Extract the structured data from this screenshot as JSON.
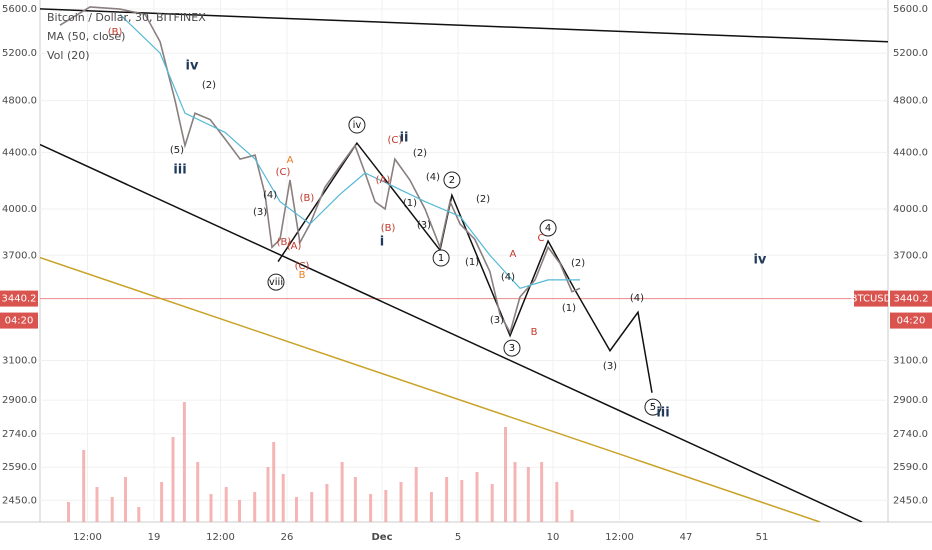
{
  "chart_data": {
    "type": "line",
    "title": "Bitcoin / Dollar, 30, BITFINEX",
    "indicators": [
      "MA (50, close)",
      "Vol (20)"
    ],
    "log_scale": true,
    "grid": true,
    "xlim": [
      13,
      57.63
    ],
    "xticks": [
      {
        "value": 15.5,
        "label": "12:00"
      },
      19,
      {
        "value": 22.5,
        "label": "12:00"
      },
      26,
      {
        "value": 31,
        "label": "Dec"
      },
      {
        "value": 35,
        "label": "5"
      },
      {
        "value": 40,
        "label": "10"
      },
      {
        "value": 43.5,
        "label": "12:00"
      },
      47,
      51
    ],
    "ylim": [
      2362,
      5686
    ],
    "yticks": [
      {
        "value": 5600,
        "label": "5600.0"
      },
      {
        "value": 5200,
        "label": "5200.0"
      },
      {
        "value": 4800,
        "label": "4800.0"
      },
      {
        "value": 4400,
        "label": "4400.0"
      },
      {
        "value": 4000,
        "label": "4000.0"
      },
      {
        "value": 3700,
        "label": "3700.0"
      },
      {
        "value": 3100,
        "label": "3100.0"
      },
      {
        "value": 2900,
        "label": "2900.0"
      },
      {
        "value": 2740,
        "label": "2740.0"
      },
      {
        "value": 2590,
        "label": "2590.0"
      },
      {
        "value": 2450,
        "label": "2450.0"
      }
    ],
    "series": [
      {
        "name": "BTCUSD",
        "color": "#8a7f7f",
        "x": [
          14.05,
          15.63,
          17.21,
          18.53,
          19.32,
          20.11,
          20.63,
          21.16,
          21.95,
          22.74,
          23.53,
          24.32,
          24.84,
          25.21,
          25.63,
          26.16,
          26.68,
          27.21,
          28.0,
          28.79,
          29.58,
          30.11,
          30.63,
          31.16,
          31.68,
          32.47,
          33.26,
          34.05,
          34.58,
          35.11,
          35.89,
          36.68,
          37.21,
          37.74,
          38.26,
          39.05,
          39.74,
          40.37,
          41.0,
          41.42
        ],
        "values": [
          5450,
          5620,
          5600,
          5550,
          5300,
          4800,
          4450,
          4700,
          4650,
          4500,
          4350,
          4380,
          4100,
          3750,
          3800,
          4200,
          3780,
          3900,
          4150,
          4300,
          4450,
          4250,
          4050,
          4000,
          4350,
          4200,
          4000,
          3750,
          4050,
          3900,
          3800,
          3600,
          3350,
          3250,
          3450,
          3550,
          3750,
          3650,
          3480,
          3500
        ]
      },
      {
        "name": "MA (50, close)",
        "color": "#55b8d6",
        "x": [
          17.21,
          19.32,
          20.63,
          22.74,
          24.32,
          25.63,
          27.21,
          28.79,
          30.11,
          31.68,
          33.26,
          35.11,
          36.68,
          38.26,
          39.74,
          41.42
        ],
        "values": [
          5550,
          5200,
          4700,
          4550,
          4350,
          4050,
          3900,
          4100,
          4250,
          4150,
          4050,
          3950,
          3700,
          3500,
          3550,
          3550
        ]
      }
    ],
    "volume": {
      "color": "#f2a3a3",
      "x": [
        14.5,
        15.3,
        16.0,
        16.8,
        17.5,
        18.2,
        19.4,
        20.0,
        20.6,
        21.3,
        22.0,
        22.8,
        23.5,
        24.3,
        25.0,
        25.3,
        25.8,
        26.5,
        27.3,
        28.1,
        28.9,
        29.6,
        30.4,
        31.2,
        32.0,
        32.8,
        33.6,
        34.4,
        35.2,
        36.0,
        36.8,
        37.5,
        38.0,
        38.7,
        39.4,
        40.2,
        41.0
      ],
      "values": [
        20,
        72,
        35,
        25,
        45,
        15,
        40,
        85,
        120,
        60,
        28,
        35,
        22,
        30,
        55,
        80,
        48,
        25,
        30,
        38,
        60,
        45,
        28,
        32,
        40,
        55,
        30,
        45,
        42,
        50,
        38,
        95,
        60,
        55,
        60,
        40,
        12
      ]
    },
    "current_price": 3440.2,
    "countdown": "04:20",
    "symbol": "BTCUSD",
    "drawings": [
      {
        "color": "#111111",
        "x": [
          13,
          57.63
        ],
        "values": [
          5601,
          5300
        ]
      },
      {
        "color": "#111111",
        "x": [
          13,
          56.26
        ],
        "values": [
          4458,
          2362
        ]
      },
      {
        "color": "#c9a227",
        "x": [
          13,
          54.05
        ],
        "values": [
          3686,
          2362
        ]
      },
      {
        "color": "#111111",
        "x": [
          25.53,
          29.68,
          34.05,
          34.68,
          37.74,
          39.74,
          41.16,
          43.0,
          44.47,
          45.21
        ],
        "values": [
          3661,
          4469,
          3732,
          4094,
          3232,
          3790,
          3489,
          3151,
          3362,
          2936
        ]
      }
    ],
    "annotations": [
      {
        "text": "(B)",
        "x": 16.95,
        "y": 5388,
        "color": "#c0392b"
      },
      {
        "text": "iv",
        "x": 21.0,
        "y": 5088,
        "color": "#1f3a5a",
        "bold": true
      },
      {
        "text": "(2)",
        "x": 21.89,
        "y": 4928,
        "color": "#222222"
      },
      {
        "text": "(5)",
        "x": 20.21,
        "y": 4417,
        "color": "#222222"
      },
      {
        "text": "iii",
        "x": 20.37,
        "y": 4271,
        "color": "#1f3a5a",
        "bold": true
      },
      {
        "text": "A",
        "x": 26.16,
        "y": 4343,
        "color": "#e67e22"
      },
      {
        "text": "(C)",
        "x": 25.79,
        "y": 4256,
        "color": "#c0392b"
      },
      {
        "text": "(4)",
        "x": 25.11,
        "y": 4094,
        "color": "#222222"
      },
      {
        "text": "(B)",
        "x": 27.05,
        "y": 4074,
        "color": "#c0392b"
      },
      {
        "text": "(3)",
        "x": 24.58,
        "y": 3980,
        "color": "#222222"
      },
      {
        "text": "(B)",
        "x": 25.84,
        "y": 3784,
        "color": "#c0392b"
      },
      {
        "text": "(A)",
        "x": 26.37,
        "y": 3758,
        "color": "#c0392b"
      },
      {
        "text": "(C)",
        "x": 26.79,
        "y": 3634,
        "color": "#c0392b"
      },
      {
        "text": "B",
        "x": 26.79,
        "y": 3579,
        "color": "#e67e22"
      },
      {
        "text": "viii",
        "x": 25.42,
        "y": 3537,
        "color": "#111111",
        "circled": true
      },
      {
        "text": "iv",
        "x": 29.68,
        "y": 4607,
        "color": "#111111",
        "circled": true
      },
      {
        "text": "(C)",
        "x": 31.68,
        "y": 4492,
        "color": "#c0392b"
      },
      {
        "text": "ii",
        "x": 32.16,
        "y": 4507,
        "color": "#1f3a5a",
        "bold": true
      },
      {
        "text": "(2)",
        "x": 33.0,
        "y": 4395,
        "color": "#222222"
      },
      {
        "text": "(A)",
        "x": 31.05,
        "y": 4200,
        "color": "#c0392b"
      },
      {
        "text": "(4)",
        "x": 33.68,
        "y": 4221,
        "color": "#222222"
      },
      {
        "text": "2",
        "x": 34.68,
        "y": 4200,
        "color": "#111111",
        "circled": true
      },
      {
        "text": "(1)",
        "x": 32.47,
        "y": 4040,
        "color": "#222222"
      },
      {
        "text": "(3)",
        "x": 33.21,
        "y": 3893,
        "color": "#222222"
      },
      {
        "text": "(B)",
        "x": 31.32,
        "y": 3874,
        "color": "#c0392b"
      },
      {
        "text": "i",
        "x": 31.0,
        "y": 3784,
        "color": "#1f3a5a",
        "bold": true
      },
      {
        "text": "(2)",
        "x": 36.32,
        "y": 4067,
        "color": "#222222"
      },
      {
        "text": "1",
        "x": 34.11,
        "y": 3683,
        "color": "#111111",
        "circled": true
      },
      {
        "text": "(1)",
        "x": 35.74,
        "y": 3658,
        "color": "#222222"
      },
      {
        "text": "A",
        "x": 37.89,
        "y": 3708,
        "color": "#c0392b"
      },
      {
        "text": "(4)",
        "x": 37.63,
        "y": 3567,
        "color": "#222222"
      },
      {
        "text": "(3)",
        "x": 37.05,
        "y": 3318,
        "color": "#222222"
      },
      {
        "text": "3",
        "x": 37.84,
        "y": 3165,
        "color": "#111111",
        "circled": true
      },
      {
        "text": "B",
        "x": 39.0,
        "y": 3251,
        "color": "#c0392b"
      },
      {
        "text": "4",
        "x": 39.74,
        "y": 3874,
        "color": "#111111",
        "circled": true
      },
      {
        "text": "C",
        "x": 39.37,
        "y": 3809,
        "color": "#c0392b"
      },
      {
        "text": "(2)",
        "x": 41.32,
        "y": 3652,
        "color": "#222222"
      },
      {
        "text": "(1)",
        "x": 40.84,
        "y": 3385,
        "color": "#222222"
      },
      {
        "text": "iv",
        "x": 50.89,
        "y": 3670,
        "color": "#1f3a5a",
        "bold": true
      },
      {
        "text": "(4)",
        "x": 44.42,
        "y": 3443,
        "color": "#222222"
      },
      {
        "text": "(3)",
        "x": 43.0,
        "y": 3071,
        "color": "#222222"
      },
      {
        "text": "5",
        "x": 45.26,
        "y": 2866,
        "color": "#111111",
        "circled": true
      },
      {
        "text": "iii",
        "x": 45.79,
        "y": 2837,
        "color": "#1f3a5a",
        "bold": true
      }
    ]
  }
}
